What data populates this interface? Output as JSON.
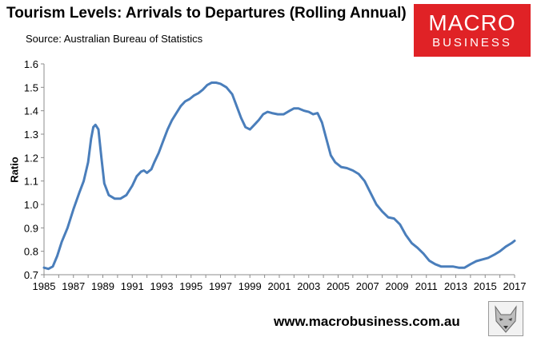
{
  "header": {
    "title": "Tourism Levels: Arrivals to Departures (Rolling Annual)",
    "source": "Source: Australian Bureau of Statistics"
  },
  "logo": {
    "line1": "MACRO",
    "line2": "BUSINESS",
    "color": "#e02226"
  },
  "footer": {
    "website": "www.macrobusiness.com.au"
  },
  "chart_data": {
    "type": "line",
    "title": "Tourism Levels: Arrivals to Departures (Rolling Annual)",
    "ylabel": "Ratio",
    "xlabel": "",
    "xlim": [
      1985,
      2017
    ],
    "ylim": [
      0.7,
      1.6
    ],
    "xticks": [
      "1985",
      "1987",
      "1989",
      "1991",
      "1993",
      "1995",
      "1997",
      "1999",
      "2001",
      "2003",
      "2005",
      "2007",
      "2009",
      "2011",
      "2013",
      "2015",
      "2017"
    ],
    "yticks": [
      "0.7",
      "0.8",
      "0.9",
      "1.0",
      "1.1",
      "1.2",
      "1.3",
      "1.4",
      "1.5",
      "1.6"
    ],
    "grid": false,
    "legend": "none",
    "line_color": "#4a7ebb",
    "series": [
      {
        "x": [
          1985.0,
          1985.3,
          1985.6,
          1985.9,
          1986.2,
          1986.6,
          1987.0,
          1987.4,
          1987.7,
          1988.0,
          1988.2,
          1988.35,
          1988.5,
          1988.7,
          1988.9,
          1989.1,
          1989.4,
          1989.8,
          1990.2,
          1990.6,
          1991.0,
          1991.3,
          1991.6,
          1991.8,
          1992.0,
          1992.3,
          1992.5,
          1992.8,
          1993.1,
          1993.4,
          1993.7,
          1994.0,
          1994.3,
          1994.6,
          1994.9,
          1995.2,
          1995.5,
          1995.8,
          1996.1,
          1996.4,
          1996.7,
          1997.0,
          1997.4,
          1997.8,
          1998.1,
          1998.4,
          1998.7,
          1999.0,
          1999.3,
          1999.6,
          1999.9,
          2000.2,
          2000.5,
          2000.9,
          2001.3,
          2001.7,
          2002.0,
          2002.3,
          2002.7,
          2003.0,
          2003.3,
          2003.6,
          2003.9,
          2004.2,
          2004.5,
          2004.8,
          2005.2,
          2005.6,
          2006.0,
          2006.4,
          2006.8,
          2007.2,
          2007.6,
          2008.0,
          2008.4,
          2008.8,
          2009.2,
          2009.6,
          2010.0,
          2010.4,
          2010.8,
          2011.2,
          2011.6,
          2012.0,
          2012.4,
          2012.8,
          2013.2,
          2013.6,
          2014.0,
          2014.4,
          2014.8,
          2015.2,
          2015.6,
          2016.0,
          2016.4,
          2016.8,
          2017.0
        ],
        "y": [
          0.73,
          0.725,
          0.735,
          0.78,
          0.84,
          0.9,
          0.98,
          1.05,
          1.1,
          1.18,
          1.28,
          1.33,
          1.34,
          1.32,
          1.2,
          1.09,
          1.04,
          1.025,
          1.025,
          1.04,
          1.08,
          1.12,
          1.14,
          1.145,
          1.135,
          1.15,
          1.18,
          1.22,
          1.27,
          1.32,
          1.36,
          1.39,
          1.42,
          1.44,
          1.45,
          1.465,
          1.475,
          1.49,
          1.51,
          1.52,
          1.52,
          1.515,
          1.5,
          1.47,
          1.42,
          1.37,
          1.33,
          1.32,
          1.34,
          1.36,
          1.385,
          1.395,
          1.39,
          1.385,
          1.385,
          1.4,
          1.41,
          1.41,
          1.4,
          1.395,
          1.385,
          1.39,
          1.35,
          1.28,
          1.21,
          1.18,
          1.16,
          1.155,
          1.145,
          1.13,
          1.1,
          1.05,
          1.0,
          0.97,
          0.945,
          0.94,
          0.915,
          0.87,
          0.835,
          0.815,
          0.79,
          0.76,
          0.745,
          0.735,
          0.735,
          0.735,
          0.73,
          0.73,
          0.745,
          0.758,
          0.765,
          0.772,
          0.785,
          0.8,
          0.82,
          0.835,
          0.845
        ]
      }
    ]
  }
}
